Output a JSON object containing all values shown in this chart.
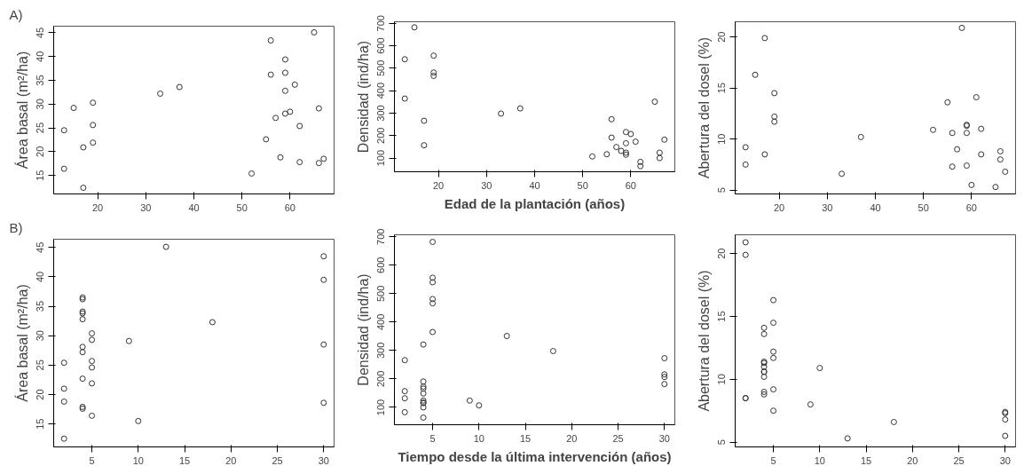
{
  "chart_data": [
    {
      "type": "scatter",
      "annotations": [
        "A)"
      ],
      "ylabel": "Área basal (m²/ha)",
      "x": [
        13,
        13,
        15,
        17,
        17,
        19,
        19,
        19,
        33,
        37,
        52,
        55,
        56,
        56,
        57,
        58,
        59,
        59,
        59,
        59,
        60,
        61,
        62,
        62,
        65,
        66,
        66,
        67
      ],
      "values": [
        24.5,
        16.4,
        29.2,
        20.9,
        12.4,
        30.3,
        25.6,
        21.9,
        32.2,
        33.6,
        15.4,
        22.6,
        43.4,
        36.2,
        27.1,
        18.8,
        39.4,
        36.6,
        32.8,
        28,
        28.4,
        34.1,
        25.4,
        17.8,
        45.1,
        29.1,
        17.6,
        18.5
      ],
      "color": "#333333",
      "marker": "circle",
      "xlim": [
        10.84,
        69.16
      ],
      "xticks": [
        20,
        30,
        40,
        50,
        60
      ],
      "ylim": [
        11.1,
        46.4
      ],
      "yticks": [
        15,
        20,
        25,
        30,
        35,
        40,
        45
      ],
      "grid": false
    },
    {
      "type": "scatter",
      "xlabel": "Edad de la plantación (años)",
      "ylabel": "Densidad (ind/ha)",
      "x": [
        13,
        13,
        15,
        17,
        17,
        19,
        19,
        19,
        33,
        37,
        52,
        55,
        56,
        56,
        57,
        58,
        59,
        59,
        59,
        59,
        60,
        61,
        62,
        62,
        65,
        66,
        66,
        67
      ],
      "values": [
        540,
        365,
        682,
        266,
        157,
        556,
        481,
        466,
        298,
        321,
        107,
        117,
        273,
        191,
        149,
        132,
        216,
        166,
        124,
        115,
        207,
        173,
        83,
        64,
        351,
        124,
        100,
        182
      ],
      "color": "#333333",
      "marker": "circle",
      "xlim": [
        10.84,
        69.16
      ],
      "xticks": [
        20,
        30,
        40,
        50,
        60
      ],
      "ylim": [
        39,
        707
      ],
      "yticks": [
        100,
        200,
        300,
        400,
        500,
        600,
        700
      ],
      "grid": false
    },
    {
      "type": "scatter",
      "ylabel": "Abertura del dosel (%)",
      "x": [
        13,
        13,
        15,
        17,
        17,
        19,
        19,
        19,
        33,
        37,
        52,
        55,
        56,
        56,
        57,
        58,
        59,
        59,
        59,
        59,
        60,
        61,
        62,
        62,
        65,
        66,
        66,
        67
      ],
      "values": [
        9.2,
        7.5,
        16.3,
        19.9,
        8.5,
        14.5,
        12.2,
        11.7,
        6.6,
        10.2,
        10.9,
        13.6,
        10.6,
        7.3,
        9.0,
        20.9,
        11.4,
        11.3,
        10.6,
        7.4,
        5.5,
        14.1,
        11.0,
        8.5,
        5.3,
        8.8,
        8.0,
        6.8
      ],
      "color": "#333333",
      "marker": "circle",
      "xlim": [
        10.84,
        69.16
      ],
      "xticks": [
        20,
        30,
        40,
        50,
        60
      ],
      "ylim": [
        4.62,
        21.5
      ],
      "yticks": [
        5,
        10,
        15,
        20
      ],
      "grid": false
    },
    {
      "type": "scatter",
      "annotations": [
        "B)"
      ],
      "ylabel": "Área basal (m²/ha)",
      "x": [
        2,
        2,
        2,
        2,
        4,
        4,
        4,
        4,
        4,
        4,
        4,
        4,
        4,
        4,
        5,
        5,
        5,
        5,
        5,
        5,
        9,
        10,
        13,
        18,
        30,
        30,
        30,
        30
      ],
      "values": [
        25.4,
        21.0,
        18.8,
        12.5,
        36.5,
        36.2,
        34.1,
        33.8,
        32.8,
        28.1,
        27.2,
        22.7,
        17.9,
        17.6,
        30.4,
        29.3,
        25.7,
        24.6,
        21.9,
        16.4,
        29.1,
        15.5,
        45.1,
        32.3,
        43.5,
        39.5,
        28.5,
        18.6
      ],
      "color": "#333333",
      "marker": "circle",
      "xlim": [
        0.88,
        31.12
      ],
      "xticks": [
        5,
        10,
        15,
        20,
        25,
        30
      ],
      "ylim": [
        11.1,
        46.4
      ],
      "yticks": [
        15,
        20,
        25,
        30,
        35,
        40,
        45
      ],
      "grid": false
    },
    {
      "type": "scatter",
      "xlabel": "Tiempo desde la última intervención (años)",
      "ylabel": "Densidad (ind/ha)",
      "x": [
        2,
        2,
        2,
        2,
        4,
        4,
        4,
        4,
        4,
        4,
        4,
        4,
        4,
        4,
        5,
        5,
        5,
        5,
        5,
        5,
        9,
        10,
        13,
        18,
        30,
        30,
        30,
        30
      ],
      "values": [
        266,
        157,
        132,
        83,
        321,
        191,
        173,
        166,
        149,
        124,
        117,
        115,
        100,
        64,
        682,
        556,
        540,
        481,
        466,
        365,
        124,
        107,
        351,
        298,
        273,
        216,
        207,
        182
      ],
      "color": "#333333",
      "marker": "circle",
      "xlim": [
        0.88,
        31.12
      ],
      "xticks": [
        5,
        10,
        15,
        20,
        25,
        30
      ],
      "ylim": [
        39,
        707
      ],
      "yticks": [
        100,
        200,
        300,
        400,
        500,
        600,
        700
      ],
      "grid": false
    },
    {
      "type": "scatter",
      "ylabel": "Abertura del dosel (%)",
      "x": [
        2,
        2,
        2,
        2,
        4,
        4,
        4,
        4,
        4,
        4,
        4,
        4,
        4,
        4,
        5,
        5,
        5,
        5,
        5,
        5,
        9,
        10,
        13,
        18,
        30,
        30,
        30,
        30
      ],
      "values": [
        20.9,
        19.9,
        8.5,
        8.5,
        14.1,
        13.6,
        11.4,
        11.3,
        11.0,
        10.6,
        10.6,
        10.2,
        9.0,
        8.8,
        16.3,
        14.5,
        12.2,
        11.7,
        9.2,
        7.5,
        8.0,
        10.9,
        5.3,
        6.6,
        7.4,
        7.3,
        6.8,
        5.5
      ],
      "color": "#333333",
      "marker": "circle",
      "xlim": [
        0.88,
        31.12
      ],
      "xticks": [
        5,
        10,
        15,
        20,
        25,
        30
      ],
      "ylim": [
        4.62,
        21.5
      ],
      "yticks": [
        5,
        10,
        15,
        20
      ],
      "grid": false
    }
  ]
}
